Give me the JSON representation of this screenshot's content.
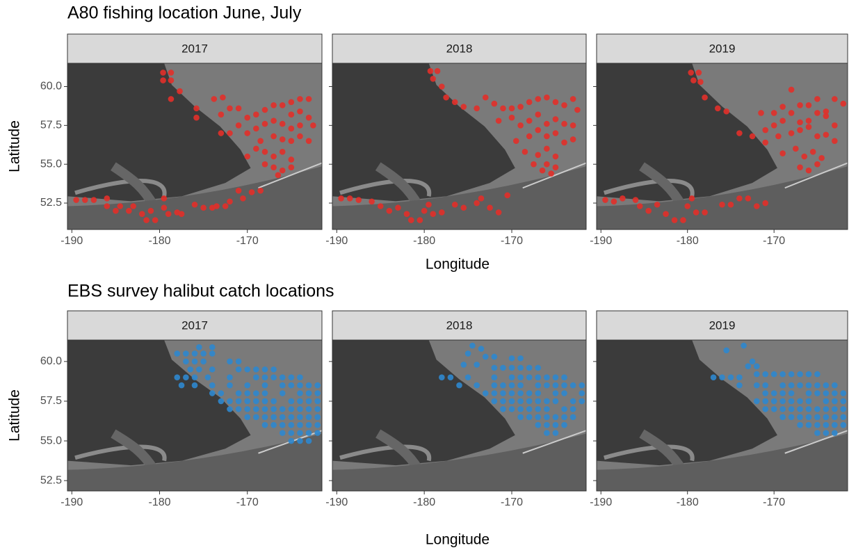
{
  "chart_data": [
    {
      "type": "scatter",
      "title": "A80 fishing location June, July",
      "xlabel": "Longitude",
      "ylabel": "Latitude",
      "color": "#e0302a",
      "xlim": [
        -190.5,
        -161.5
      ],
      "ylim": [
        50.8,
        61.5
      ],
      "xticks": [
        -190,
        -180,
        -170
      ],
      "yticks": [
        {
          "value": 52.5,
          "label": "52.5"
        },
        {
          "value": 55,
          "label": "55.0"
        },
        {
          "value": 57.5,
          "label": "57.5"
        },
        {
          "value": 60,
          "label": "60.0"
        }
      ],
      "facets": [
        {
          "label": "2017",
          "x": [
            -179.6,
            -178.7,
            -179.6,
            -178.7,
            -177.7,
            -178.7,
            -175.8,
            -175.8,
            -173.8,
            -172.8,
            -173.0,
            -172.0,
            -171.0,
            -170.0,
            -169.0,
            -168.0,
            -167.0,
            -166.0,
            -165.0,
            -164.0,
            -163.0,
            -165.0,
            -164.0,
            -163.0,
            -162.5,
            -164.0,
            -165.0,
            -166.0,
            -167.0,
            -168.0,
            -169.0,
            -170.0,
            -171.0,
            -172.0,
            -173.0,
            -168.5,
            -167.0,
            -166.0,
            -165.0,
            -164.0,
            -163.0,
            -168.0,
            -167.0,
            -166.0,
            -165.0,
            -168.0,
            -167.0,
            -166.0,
            -165.0,
            -166.5,
            -170.0,
            -169.0,
            -189.5,
            -188.5,
            -187.5,
            -186.0,
            -186.0,
            -185.0,
            -184.5,
            -183.5,
            -183.0,
            -182.0,
            -181.5,
            -180.5,
            -181.0,
            -179.5,
            -179.5,
            -179.0,
            -178.0,
            -177.5,
            -176.0,
            -175.0,
            -174.0,
            -173.5,
            -172.5,
            -172.0,
            -171.0,
            -170.5,
            -169.5,
            -168.5
          ],
          "y": [
            60.9,
            60.9,
            60.4,
            60.4,
            59.7,
            59.2,
            58.6,
            58.0,
            59.2,
            59.3,
            58.2,
            58.6,
            58.6,
            58.0,
            58.2,
            58.5,
            58.8,
            58.8,
            59.0,
            59.2,
            59.2,
            58.2,
            58.4,
            58.0,
            57.5,
            57.5,
            57.3,
            57.6,
            57.8,
            57.6,
            57.3,
            57.0,
            57.5,
            57.0,
            57.0,
            56.5,
            56.8,
            56.6,
            56.5,
            56.8,
            56.5,
            55.8,
            55.5,
            55.8,
            55.3,
            55.0,
            54.8,
            54.6,
            54.8,
            54.3,
            55.5,
            56.0,
            52.7,
            52.7,
            52.7,
            52.8,
            52.3,
            52.0,
            52.3,
            52.0,
            52.3,
            51.8,
            51.4,
            51.4,
            52.0,
            52.8,
            52.2,
            51.8,
            51.9,
            51.8,
            52.4,
            52.2,
            52.2,
            52.3,
            52.3,
            52.6,
            53.3,
            52.8,
            53.2,
            53.3
          ]
        },
        {
          "label": "2018",
          "x": [
            -179.3,
            -178.5,
            -179.0,
            -178.0,
            -177.5,
            -176.5,
            -175.5,
            -174.0,
            -173.0,
            -172.0,
            -171.0,
            -170.0,
            -169.0,
            -168.0,
            -167.0,
            -166.0,
            -165.0,
            -164.0,
            -163.0,
            -162.5,
            -171.5,
            -170.0,
            -169.0,
            -168.0,
            -167.0,
            -166.0,
            -165.0,
            -164.0,
            -163.0,
            -169.5,
            -168.0,
            -167.0,
            -166.0,
            -165.0,
            -164.0,
            -163.0,
            -168.5,
            -167.0,
            -166.0,
            -165.0,
            -167.5,
            -166.5,
            -165.5,
            -166.0,
            -165.0,
            -189.5,
            -188.5,
            -187.5,
            -186.0,
            -185.0,
            -184.0,
            -183.0,
            -182.0,
            -181.5,
            -180.5,
            -180.0,
            -179.5,
            -179.0,
            -178.0,
            -176.5,
            -175.5,
            -174.0,
            -173.5,
            -172.5,
            -171.5,
            -170.5
          ],
          "y": [
            61.0,
            61.0,
            60.5,
            60.0,
            59.3,
            59.0,
            58.7,
            58.6,
            59.3,
            58.9,
            58.6,
            58.6,
            58.7,
            59.0,
            59.2,
            59.3,
            59.0,
            58.8,
            59.2,
            58.5,
            57.8,
            58.0,
            57.5,
            57.8,
            58.2,
            57.6,
            57.9,
            57.6,
            57.5,
            56.5,
            56.8,
            57.2,
            56.8,
            57.0,
            56.4,
            56.6,
            55.8,
            55.6,
            56.0,
            55.5,
            55.0,
            54.6,
            54.4,
            55.0,
            54.8,
            52.8,
            52.8,
            52.7,
            52.6,
            52.3,
            52.0,
            52.2,
            51.8,
            51.4,
            51.4,
            52.0,
            52.4,
            51.8,
            51.9,
            52.4,
            52.2,
            52.5,
            52.8,
            52.2,
            51.9,
            53.0
          ]
        },
        {
          "label": "2019",
          "x": [
            -179.6,
            -178.7,
            -179.3,
            -178.5,
            -178.0,
            -176.5,
            -175.5,
            -174.0,
            -172.5,
            -171.0,
            -170.0,
            -169.0,
            -168.0,
            -167.0,
            -166.0,
            -165.0,
            -164.0,
            -163.0,
            -162.0,
            -171.5,
            -170.0,
            -169.0,
            -168.0,
            -167.0,
            -166.0,
            -165.0,
            -164.0,
            -163.0,
            -171.0,
            -169.5,
            -168.0,
            -167.0,
            -166.0,
            -165.0,
            -164.0,
            -163.0,
            -169.0,
            -167.5,
            -166.5,
            -165.5,
            -164.5,
            -167.0,
            -166.0,
            -165.0,
            -189.5,
            -188.5,
            -187.5,
            -186.0,
            -185.5,
            -184.5,
            -183.5,
            -182.5,
            -181.5,
            -180.5,
            -180.0,
            -179.5,
            -179.0,
            -178.0,
            -176.0,
            -175.0,
            -174.0,
            -173.0,
            -172.0,
            -171.0
          ],
          "y": [
            60.9,
            60.9,
            60.4,
            60.3,
            59.3,
            58.6,
            58.4,
            57.0,
            56.8,
            57.2,
            57.5,
            58.7,
            59.8,
            58.8,
            58.8,
            59.2,
            58.4,
            59.2,
            58.9,
            58.3,
            58.3,
            57.8,
            58.3,
            57.7,
            57.8,
            58.3,
            58.1,
            57.5,
            56.4,
            56.8,
            57.0,
            57.2,
            57.4,
            56.8,
            56.9,
            56.5,
            55.7,
            56.0,
            55.5,
            55.8,
            55.4,
            54.8,
            54.6,
            55.0,
            52.7,
            52.6,
            52.8,
            52.7,
            52.3,
            52.0,
            52.4,
            51.8,
            51.4,
            51.4,
            52.3,
            52.8,
            51.9,
            51.9,
            52.4,
            52.4,
            52.8,
            52.8,
            52.3,
            52.5
          ]
        }
      ]
    },
    {
      "type": "scatter",
      "title": "EBS survey halibut catch locations",
      "xlabel": "Longitude",
      "ylabel": "Latitude",
      "color": "#2f87cc",
      "xlim": [
        -190.5,
        -161.5
      ],
      "ylim": [
        51.85,
        61.35
      ],
      "xticks": [
        -190,
        -180,
        -170
      ],
      "yticks": [
        {
          "value": 52.5,
          "label": "52.5"
        },
        {
          "value": 55,
          "label": "55.0"
        },
        {
          "value": 57.5,
          "label": "57.5"
        },
        {
          "value": 60,
          "label": "60.0"
        }
      ],
      "facets": [
        {
          "label": "2017",
          "x": [
            -175.5,
            -174.0,
            -178.0,
            -177.0,
            -176.0,
            -175.0,
            -174.0,
            -177.0,
            -176.0,
            -175.0,
            -172.0,
            -171.0,
            -176.5,
            -175.5,
            -174.0,
            -171.0,
            -170.0,
            -169.0,
            -168.0,
            -167.0,
            -178.0,
            -177.0,
            -176.0,
            -174.5,
            -172.0,
            -169.0,
            -168.0,
            -167.0,
            -166.0,
            -165.0,
            -164.0,
            -177.5,
            -176.0,
            -174.0,
            -172.0,
            -170.0,
            -168.0,
            -166.0,
            -165.0,
            -164.0,
            -163.0,
            -162.0,
            -174.0,
            -173.0,
            -171.0,
            -170.0,
            -169.0,
            -168.0,
            -166.0,
            -164.0,
            -163.0,
            -162.0,
            -173.0,
            -172.0,
            -171.0,
            -170.0,
            -169.0,
            -168.0,
            -167.0,
            -165.0,
            -164.0,
            -163.0,
            -162.0,
            -172.0,
            -171.0,
            -170.0,
            -169.0,
            -168.0,
            -167.0,
            -166.0,
            -165.0,
            -164.0,
            -163.0,
            -162.0,
            -170.0,
            -169.0,
            -168.0,
            -167.0,
            -166.0,
            -165.0,
            -164.0,
            -163.0,
            -162.0,
            -168.0,
            -167.0,
            -166.0,
            -165.0,
            -164.0,
            -163.0,
            -162.0,
            -166.0,
            -165.0,
            -164.0,
            -163.0,
            -162.0,
            -165.0,
            -164.0,
            -163.0
          ],
          "y": [
            60.9,
            60.9,
            60.5,
            60.5,
            60.5,
            60.5,
            60.5,
            60.0,
            60.0,
            60.0,
            60.0,
            60.0,
            59.5,
            59.5,
            59.5,
            59.5,
            59.5,
            59.5,
            59.5,
            59.5,
            59.0,
            59.0,
            59.0,
            59.0,
            59.0,
            59.0,
            59.0,
            59.0,
            59.0,
            59.0,
            59.0,
            58.5,
            58.5,
            58.5,
            58.5,
            58.5,
            58.5,
            58.5,
            58.5,
            58.5,
            58.5,
            58.5,
            58.0,
            58.0,
            58.0,
            58.0,
            58.0,
            58.0,
            58.0,
            58.0,
            58.0,
            58.0,
            57.5,
            57.5,
            57.5,
            57.5,
            57.5,
            57.5,
            57.5,
            57.5,
            57.5,
            57.5,
            57.5,
            57.0,
            57.0,
            57.0,
            57.0,
            57.0,
            57.0,
            57.0,
            57.0,
            57.0,
            57.0,
            57.0,
            56.5,
            56.5,
            56.5,
            56.5,
            56.5,
            56.5,
            56.5,
            56.5,
            56.5,
            56.0,
            56.0,
            56.0,
            56.0,
            56.0,
            56.0,
            56.0,
            55.5,
            55.5,
            55.5,
            55.5,
            55.5,
            55.0,
            55.0,
            55.0
          ]
        },
        {
          "label": "2018",
          "x": [
            -174.5,
            -173.5,
            -175.0,
            -173.0,
            -172.0,
            -170.0,
            -169.0,
            -175.5,
            -174.0,
            -172.0,
            -171.0,
            -170.0,
            -169.0,
            -168.0,
            -167.0,
            -178.0,
            -177.0,
            -175.0,
            -172.0,
            -170.0,
            -169.0,
            -168.0,
            -167.0,
            -166.0,
            -165.0,
            -164.0,
            -176.0,
            -174.0,
            -172.0,
            -171.0,
            -170.0,
            -169.0,
            -167.0,
            -166.0,
            -165.0,
            -164.0,
            -163.0,
            -162.0,
            -173.0,
            -172.0,
            -171.0,
            -170.0,
            -169.0,
            -168.0,
            -167.0,
            -165.0,
            -164.0,
            -162.0,
            -172.0,
            -171.0,
            -170.0,
            -169.0,
            -168.0,
            -167.0,
            -166.0,
            -165.0,
            -163.0,
            -162.0,
            -171.0,
            -170.0,
            -169.0,
            -168.0,
            -167.0,
            -166.0,
            -164.0,
            -163.0,
            -169.0,
            -168.0,
            -167.0,
            -166.0,
            -165.0,
            -164.0,
            -163.0,
            -167.0,
            -166.0,
            -165.0,
            -164.0,
            -166.0,
            -165.0
          ],
          "y": [
            61.0,
            60.8,
            60.5,
            60.3,
            60.3,
            60.2,
            60.2,
            59.8,
            59.8,
            59.6,
            59.6,
            59.6,
            59.6,
            59.6,
            59.6,
            59.0,
            59.0,
            59.0,
            59.0,
            59.0,
            59.0,
            59.0,
            59.0,
            59.0,
            59.0,
            59.0,
            58.5,
            58.5,
            58.5,
            58.5,
            58.5,
            58.5,
            58.5,
            58.5,
            58.5,
            58.5,
            58.5,
            58.5,
            58.0,
            58.0,
            58.0,
            58.0,
            58.0,
            58.0,
            58.0,
            58.0,
            58.0,
            58.0,
            57.5,
            57.5,
            57.5,
            57.5,
            57.5,
            57.5,
            57.5,
            57.5,
            57.5,
            57.5,
            57.0,
            57.0,
            57.0,
            57.0,
            57.0,
            57.0,
            57.0,
            57.0,
            56.5,
            56.5,
            56.5,
            56.5,
            56.5,
            56.5,
            56.5,
            56.0,
            56.0,
            56.0,
            56.0,
            55.5,
            55.5
          ]
        },
        {
          "label": "2019",
          "x": [
            -175.5,
            -173.5,
            -172.5,
            -173.0,
            -172.0,
            -177.0,
            -176.0,
            -175.0,
            -174.0,
            -172.0,
            -171.0,
            -170.0,
            -169.0,
            -168.0,
            -167.0,
            -166.0,
            -165.0,
            -174.0,
            -172.0,
            -171.0,
            -169.0,
            -168.0,
            -167.0,
            -166.0,
            -165.0,
            -164.0,
            -163.0,
            -171.0,
            -170.0,
            -169.0,
            -168.0,
            -166.0,
            -165.0,
            -164.0,
            -163.0,
            -162.0,
            -172.0,
            -171.0,
            -170.0,
            -169.0,
            -168.0,
            -167.0,
            -166.0,
            -164.0,
            -163.0,
            -162.0,
            -171.0,
            -170.0,
            -169.0,
            -168.0,
            -167.0,
            -166.0,
            -165.0,
            -164.0,
            -163.0,
            -162.0,
            -169.0,
            -168.0,
            -167.0,
            -166.0,
            -165.0,
            -164.0,
            -163.0,
            -162.0,
            -167.0,
            -166.0,
            -165.0,
            -164.0,
            -163.0,
            -162.0,
            -165.0,
            -164.0,
            -163.0
          ],
          "y": [
            60.7,
            61.0,
            60.0,
            59.7,
            59.7,
            59.0,
            59.0,
            59.0,
            59.0,
            59.2,
            59.2,
            59.2,
            59.2,
            59.2,
            59.2,
            59.2,
            59.2,
            58.5,
            58.5,
            58.5,
            58.5,
            58.5,
            58.5,
            58.5,
            58.5,
            58.5,
            58.5,
            58.0,
            58.0,
            58.0,
            58.0,
            58.0,
            58.0,
            58.0,
            58.0,
            58.0,
            57.5,
            57.5,
            57.5,
            57.5,
            57.5,
            57.5,
            57.5,
            57.5,
            57.5,
            57.5,
            57.0,
            57.0,
            57.0,
            57.0,
            57.0,
            57.0,
            57.0,
            57.0,
            57.0,
            57.0,
            56.5,
            56.5,
            56.5,
            56.5,
            56.5,
            56.5,
            56.5,
            56.5,
            56.0,
            56.0,
            56.0,
            56.0,
            56.0,
            56.0,
            55.5,
            55.5,
            55.5
          ]
        }
      ]
    }
  ]
}
